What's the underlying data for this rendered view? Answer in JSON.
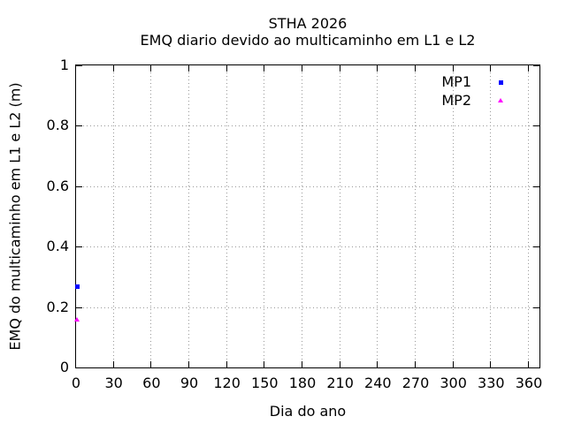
{
  "window": {
    "background": "#ffffff"
  },
  "chart_data": {
    "type": "scatter",
    "title": "STHA 2026",
    "subtitle": "EMQ diario devido ao multicaminho em L1 e L2",
    "xlabel": "Dia do ano",
    "ylabel": "EMQ do multicaminho em L1 e L2 (m)",
    "xlim": [
      0,
      370
    ],
    "ylim": [
      0,
      1
    ],
    "xticks": {
      "values": [
        0,
        30,
        60,
        90,
        120,
        150,
        180,
        210,
        240,
        270,
        300,
        330,
        360
      ],
      "labels": [
        "0",
        "30",
        "60",
        "90",
        "120",
        "150",
        "180",
        "210",
        "240",
        "270",
        "300",
        "330",
        "360"
      ]
    },
    "yticks": {
      "values": [
        0,
        0.2,
        0.4,
        0.6,
        0.8,
        1
      ],
      "labels": [
        "0",
        "0.2",
        "0.4",
        "0.6",
        "0.8",
        "1"
      ]
    },
    "grid": {
      "show": true,
      "style": "dotted",
      "color": "#999999"
    },
    "axis_color": "#000000",
    "legend": {
      "position": "top-right-inside",
      "entries": [
        {
          "label": "MP1",
          "marker": "square",
          "color": "#0000ff"
        },
        {
          "label": "MP2",
          "marker": "triangle-up",
          "color": "#ff00ff"
        }
      ]
    },
    "series": [
      {
        "name": "MP1",
        "marker": "square",
        "color": "#0000ff",
        "points": [
          {
            "x": 1,
            "y": 0.27
          }
        ]
      },
      {
        "name": "MP2",
        "marker": "triangle-up",
        "color": "#ff00ff",
        "points": [
          {
            "x": 1,
            "y": 0.16
          }
        ]
      }
    ]
  }
}
